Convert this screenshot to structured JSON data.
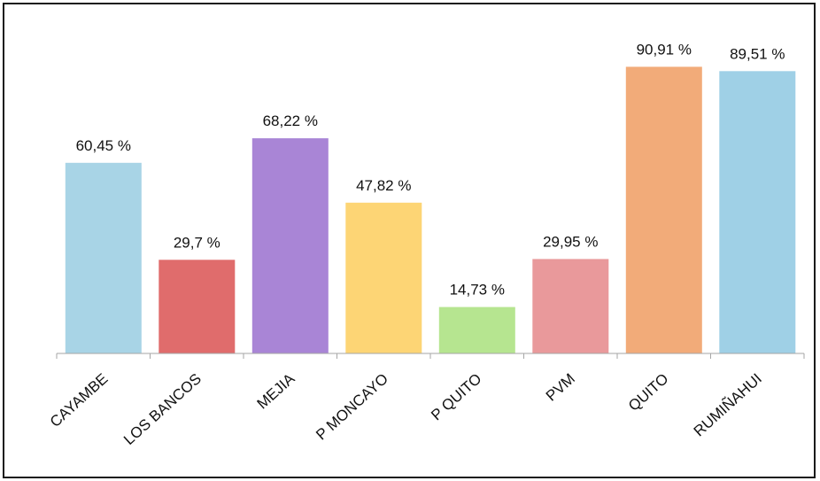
{
  "chart_data": {
    "type": "bar",
    "categories": [
      "CAYAMBE",
      "LOS BANCOS",
      "MEJIA",
      "P MONCAYO",
      "P QUITO",
      "PVM",
      "QUITO",
      "RUMIÑAHUI"
    ],
    "values": [
      60.45,
      29.7,
      68.22,
      47.82,
      14.73,
      29.95,
      90.91,
      89.51
    ],
    "data_labels": [
      "60,45 %",
      "29,7 %",
      "68,22 %",
      "47,82 %",
      "14,73 %",
      "29,95 %",
      "90,91 %",
      "89,51 %"
    ],
    "colors": [
      "#a8d4e6",
      "#e06c6c",
      "#a985d6",
      "#fdd575",
      "#b6e590",
      "#e9999b",
      "#f2ab79",
      "#9fd0e6"
    ],
    "title": "",
    "xlabel": "",
    "ylabel": "",
    "ylim": [
      0,
      100
    ],
    "grid": false,
    "legend": "none",
    "axis_color": "#a6a6a6"
  }
}
